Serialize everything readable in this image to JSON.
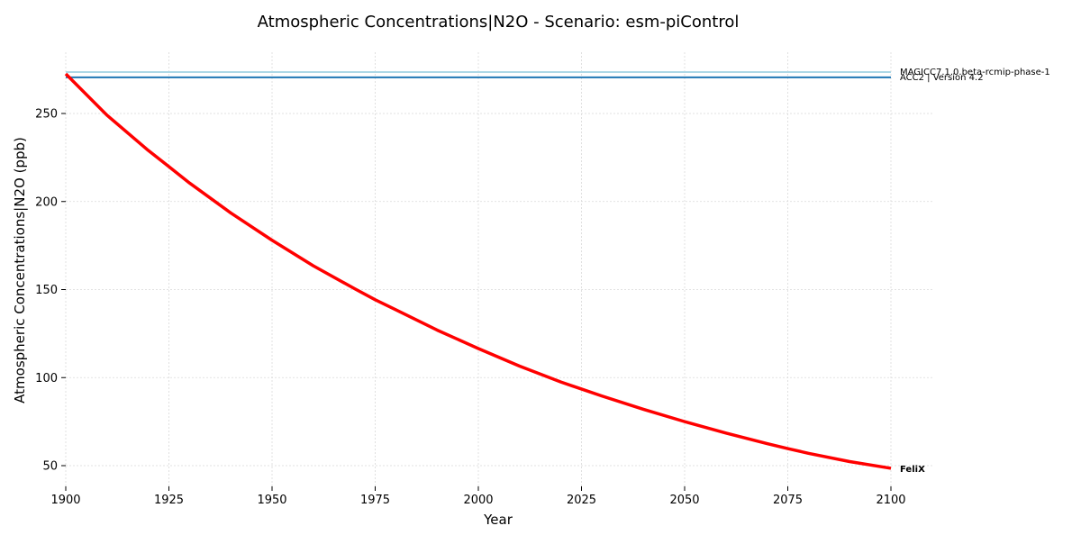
{
  "chart_data": {
    "type": "line",
    "title": "Atmospheric Concentrations|N2O - Scenario: esm-piControl",
    "xlabel": "Year",
    "ylabel": "Atmospheric Concentrations|N2O (ppb)",
    "xlim": [
      1900,
      2110
    ],
    "ylim": [
      38,
      284
    ],
    "x_ticks": [
      1900,
      1925,
      1950,
      1975,
      2000,
      2025,
      2050,
      2075,
      2100
    ],
    "y_ticks": [
      50,
      100,
      150,
      200,
      250
    ],
    "grid": true,
    "series": [
      {
        "name": "MAGICC7.1.0.beta-rcmip-phase-1",
        "color": "#add8e6",
        "x": [
          1900,
          2100
        ],
        "y": [
          273.5,
          273.5
        ]
      },
      {
        "name": "ACC2 | Version 4.2",
        "color": "#1f77b4",
        "x": [
          1900,
          2100
        ],
        "y": [
          270.5,
          270.5
        ]
      },
      {
        "name": "FeliX",
        "color": "#ff0000",
        "x": [
          1900,
          1910,
          1920,
          1925,
          1930,
          1940,
          1950,
          1960,
          1970,
          1975,
          1980,
          1990,
          2000,
          2010,
          2020,
          2025,
          2030,
          2040,
          2050,
          2060,
          2070,
          2075,
          2080,
          2090,
          2100
        ],
        "y": [
          272.5,
          249,
          229,
          219.8,
          210.5,
          193.5,
          178,
          163.5,
          150.5,
          144.2,
          138.5,
          127,
          116.5,
          106.5,
          97.5,
          93.5,
          89.5,
          82,
          75,
          68.5,
          62.5,
          59.7,
          57,
          52.3,
          48.5
        ]
      }
    ]
  }
}
